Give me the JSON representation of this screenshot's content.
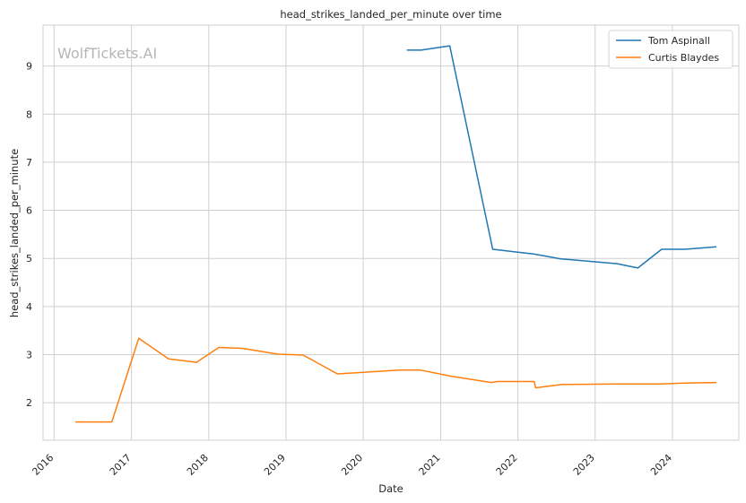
{
  "chart_data": {
    "type": "line",
    "title": "head_strikes_landed_per_minute over time",
    "xlabel": "Date",
    "ylabel": "head_strikes_landed_per_minute",
    "watermark": "WolfTickets.AI",
    "xlim": [
      "2015-11-10",
      "2024-11-10"
    ],
    "ylim": [
      1.22,
      9.85
    ],
    "x_ticks": [
      "2016-01-01",
      "2017-01-01",
      "2018-01-01",
      "2019-01-01",
      "2020-01-01",
      "2021-01-01",
      "2022-01-01",
      "2023-01-01",
      "2024-01-01"
    ],
    "x_tick_labels": [
      "2016",
      "2017",
      "2018",
      "2019",
      "2020",
      "2021",
      "2022",
      "2023",
      "2024"
    ],
    "y_ticks": [
      2,
      3,
      4,
      5,
      6,
      7,
      8,
      9
    ],
    "y_tick_labels": [
      "2",
      "3",
      "4",
      "5",
      "6",
      "7",
      "8",
      "9"
    ],
    "grid": true,
    "legend_position": "top-right",
    "series": [
      {
        "name": "Tom Aspinall",
        "color": "#1f77b4",
        "points": [
          [
            "2020-07-25",
            9.33
          ],
          [
            "2020-10-01",
            9.33
          ],
          [
            "2021-02-13",
            9.42
          ],
          [
            "2021-09-04",
            5.19
          ],
          [
            "2022-03-19",
            5.09
          ],
          [
            "2022-07-23",
            4.99
          ],
          [
            "2023-04-15",
            4.89
          ],
          [
            "2023-07-22",
            4.8
          ],
          [
            "2023-11-11",
            5.19
          ],
          [
            "2024-03-01",
            5.19
          ],
          [
            "2024-07-27",
            5.24
          ]
        ]
      },
      {
        "name": "Curtis Blaydes",
        "color": "#ff7f0e",
        "points": [
          [
            "2016-04-10",
            1.6
          ],
          [
            "2016-09-30",
            1.6
          ],
          [
            "2017-02-04",
            3.34
          ],
          [
            "2017-06-25",
            2.91
          ],
          [
            "2017-11-04",
            2.84
          ],
          [
            "2018-02-18",
            3.15
          ],
          [
            "2018-06-09",
            3.13
          ],
          [
            "2018-11-24",
            3.01
          ],
          [
            "2019-03-23",
            2.99
          ],
          [
            "2019-09-01",
            2.6
          ],
          [
            "2020-06-20",
            2.68
          ],
          [
            "2020-09-26",
            2.68
          ],
          [
            "2021-02-20",
            2.55
          ],
          [
            "2021-08-28",
            2.42
          ],
          [
            "2021-09-25",
            2.44
          ],
          [
            "2022-03-19",
            2.44
          ],
          [
            "2022-03-26",
            2.31
          ],
          [
            "2022-07-30",
            2.38
          ],
          [
            "2023-04-22",
            2.39
          ],
          [
            "2023-11-04",
            2.39
          ],
          [
            "2024-03-02",
            2.41
          ],
          [
            "2024-07-27",
            2.42
          ]
        ]
      }
    ]
  }
}
